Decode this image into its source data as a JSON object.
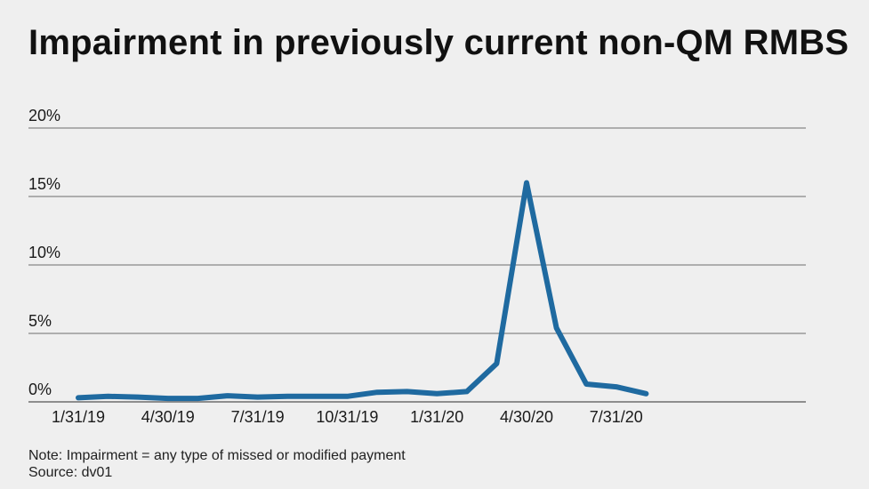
{
  "colors": {
    "background": "#efefef",
    "line": "#1f6aa0",
    "grid": "#6e6e6e",
    "text": "#1a1a1a"
  },
  "notes": {
    "note": "Note: Impairment = any type of missed or modified payment",
    "source": "Source: dv01"
  },
  "chart_data": {
    "type": "line",
    "title": "Impairment in previously current non-QM RMBS",
    "xlabel": "",
    "ylabel": "",
    "ylim": [
      0,
      20
    ],
    "y_ticks": [
      0,
      5,
      10,
      15,
      20
    ],
    "y_tick_labels": [
      "0%",
      "5%",
      "10%",
      "15%",
      "20%"
    ],
    "grid": true,
    "x": [
      "1/31/19",
      "2/28/19",
      "3/31/19",
      "4/30/19",
      "5/31/19",
      "6/30/19",
      "7/31/19",
      "8/31/19",
      "9/30/19",
      "10/31/19",
      "11/30/19",
      "12/31/19",
      "1/31/20",
      "2/29/20",
      "3/31/20",
      "4/30/20",
      "5/31/20",
      "6/30/20",
      "7/31/20",
      "8/31/20"
    ],
    "x_tick_labels": [
      "1/31/19",
      "4/30/19",
      "7/31/19",
      "10/31/19",
      "1/31/20",
      "4/30/20",
      "7/31/20"
    ],
    "series": [
      {
        "values": [
          0.3,
          0.4,
          0.35,
          0.25,
          0.25,
          0.45,
          0.35,
          0.4,
          0.4,
          0.4,
          0.7,
          0.75,
          0.6,
          0.75,
          2.8,
          16.0,
          5.4,
          1.3,
          1.1,
          0.6
        ]
      }
    ]
  }
}
